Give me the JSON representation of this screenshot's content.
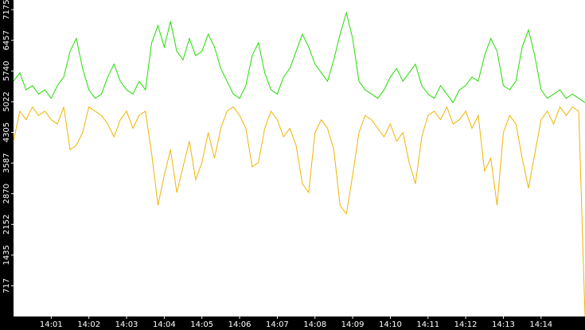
{
  "chart_data": {
    "type": "line",
    "x": [
      "14:00:00",
      "14:00:10",
      "14:00:20",
      "14:00:30",
      "14:00:40",
      "14:00:50",
      "14:01:00",
      "14:01:10",
      "14:01:20",
      "14:01:30",
      "14:01:40",
      "14:01:50",
      "14:02:00",
      "14:02:10",
      "14:02:20",
      "14:02:30",
      "14:02:40",
      "14:02:50",
      "14:03:00",
      "14:03:10",
      "14:03:20",
      "14:03:30",
      "14:03:40",
      "14:03:50",
      "14:04:00",
      "14:04:10",
      "14:04:20",
      "14:04:30",
      "14:04:40",
      "14:04:50",
      "14:05:00",
      "14:05:10",
      "14:05:20",
      "14:05:30",
      "14:05:40",
      "14:05:50",
      "14:06:00",
      "14:06:10",
      "14:06:20",
      "14:06:30",
      "14:06:40",
      "14:06:50",
      "14:07:00",
      "14:07:10",
      "14:07:20",
      "14:07:30",
      "14:07:40",
      "14:07:50",
      "14:08:00",
      "14:08:10",
      "14:08:20",
      "14:08:30",
      "14:08:40",
      "14:08:50",
      "14:09:00",
      "14:09:10",
      "14:09:20",
      "14:09:30",
      "14:09:40",
      "14:09:50",
      "14:10:00",
      "14:10:10",
      "14:10:20",
      "14:10:30",
      "14:10:40",
      "14:10:50",
      "14:11:00",
      "14:11:10",
      "14:11:20",
      "14:11:30",
      "14:11:40",
      "14:11:50",
      "14:12:00",
      "14:12:10",
      "14:12:20",
      "14:12:30",
      "14:12:40",
      "14:12:50",
      "14:13:00",
      "14:13:10",
      "14:13:20",
      "14:13:30",
      "14:13:40",
      "14:13:50",
      "14:14:00",
      "14:14:10",
      "14:14:20",
      "14:14:30",
      "14:14:40",
      "14:14:50",
      "14:15:00",
      "14:15:10"
    ],
    "series": [
      {
        "color": "#22dd00",
        "values": [
          5500,
          5700,
          5300,
          5400,
          5200,
          5300,
          5100,
          5400,
          5600,
          6200,
          6500,
          5800,
          5300,
          5100,
          5200,
          5600,
          5900,
          5500,
          5300,
          5200,
          5500,
          5300,
          6400,
          6800,
          6300,
          6900,
          6200,
          6000,
          6500,
          6100,
          6200,
          6600,
          6300,
          5800,
          5500,
          5200,
          5100,
          5400,
          6100,
          6400,
          5700,
          5300,
          5200,
          5600,
          5800,
          6200,
          6600,
          6300,
          5900,
          5700,
          5500,
          6000,
          6600,
          7100,
          6500,
          5500,
          5300,
          5200,
          5100,
          5300,
          5600,
          5800,
          5500,
          5700,
          5900,
          5400,
          5200,
          5100,
          5400,
          5200,
          5000,
          5300,
          5400,
          5600,
          5500,
          6100,
          6500,
          6200,
          5400,
          5300,
          5500,
          6300,
          6700,
          6100,
          5300,
          5100,
          5200,
          5300,
          5100,
          5200,
          5100,
          5000
        ]
      },
      {
        "color": "#f0b400",
        "values": [
          4100,
          4800,
          4600,
          4900,
          4700,
          4800,
          4600,
          4500,
          4900,
          3900,
          4000,
          4300,
          4900,
          4800,
          4700,
          4500,
          4200,
          4600,
          4800,
          4400,
          4700,
          4800,
          3800,
          2600,
          3300,
          3900,
          2900,
          3500,
          4100,
          3200,
          3600,
          4300,
          3700,
          4400,
          4800,
          4900,
          4700,
          4400,
          3500,
          3600,
          4400,
          4800,
          4600,
          4200,
          4400,
          4000,
          3100,
          2900,
          4300,
          4600,
          4400,
          3900,
          2600,
          2400,
          3300,
          4300,
          4700,
          4600,
          4400,
          4200,
          4500,
          4100,
          4300,
          3600,
          3100,
          4200,
          4700,
          4800,
          4600,
          4900,
          4500,
          4600,
          4800,
          4400,
          4700,
          3400,
          3700,
          2600,
          4300,
          4700,
          4500,
          3700,
          3000,
          3800,
          4600,
          4800,
          4500,
          4900,
          4700,
          4900,
          4800,
          0
        ]
      }
    ],
    "xlim": [
      "14:00:00",
      "14:15:10"
    ],
    "xticks": [
      "14:01",
      "14:02",
      "14:03",
      "14:04",
      "14:05",
      "14:06",
      "14:07",
      "14:08",
      "14:09",
      "14:10",
      "14:11",
      "14:12",
      "14:13",
      "14:14"
    ],
    "ylim": [
      0,
      7400
    ],
    "yticks": [
      717,
      1435,
      2152,
      2870,
      3587,
      4305,
      5022,
      5740,
      6457,
      7175
    ]
  }
}
